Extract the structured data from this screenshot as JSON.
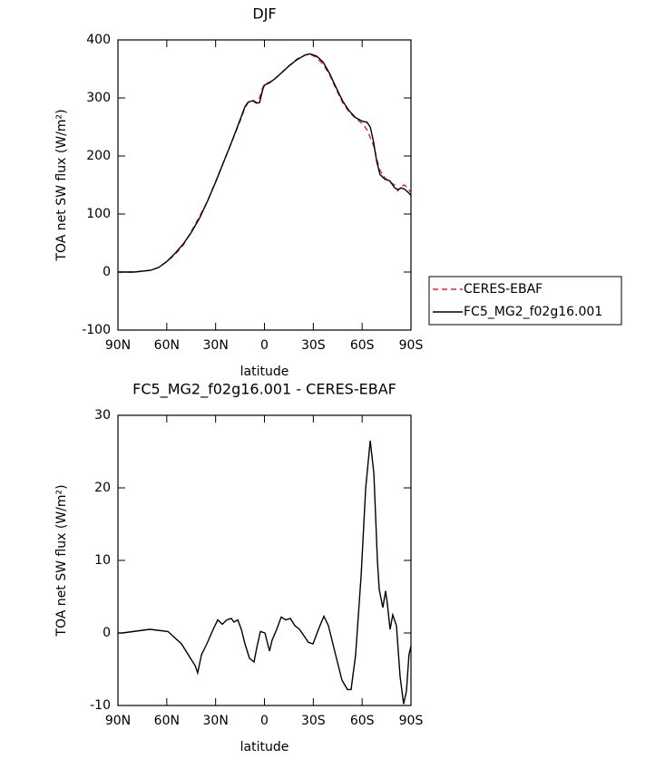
{
  "chart_data": [
    {
      "type": "line",
      "title": "DJF",
      "xlabel": "latitude",
      "ylabel": "TOA net SW flux (W/m²)",
      "x": [
        90,
        80,
        70,
        65,
        60,
        55,
        50,
        45,
        40,
        35,
        30,
        25,
        20,
        15,
        12,
        10,
        7,
        5,
        3,
        1,
        0,
        -3,
        -6,
        -10,
        -15,
        -20,
        -25,
        -28,
        -32,
        -36,
        -40,
        -44,
        -48,
        -52,
        -56,
        -60,
        -63,
        -65,
        -67,
        -69,
        -71,
        -74,
        -77,
        -80,
        -82,
        -84,
        -86,
        -88,
        -90
      ],
      "series": [
        {
          "name": "CERES-EBAF",
          "color": "#e8202a",
          "dashed": true,
          "values": [
            0,
            0,
            3,
            8,
            18,
            30,
            46,
            70,
            95,
            122,
            156,
            190,
            225,
            260,
            283,
            292,
            296,
            293,
            300,
            318,
            324,
            327,
            332,
            342,
            355,
            367,
            374,
            375,
            370,
            358,
            340,
            315,
            292,
            276,
            265,
            256,
            245,
            232,
            218,
            195,
            175,
            162,
            155,
            150,
            140,
            148,
            150,
            145,
            136
          ]
        },
        {
          "name": "FC5_MG2_f02g16.001",
          "color": "#000000",
          "dashed": false,
          "values": [
            0,
            0,
            3,
            8,
            18,
            32,
            48,
            68,
            92,
            122,
            155,
            190,
            225,
            262,
            285,
            293,
            295,
            291,
            292,
            315,
            322,
            326,
            332,
            342,
            355,
            366,
            374,
            376,
            372,
            362,
            342,
            318,
            295,
            278,
            266,
            260,
            258,
            250,
            225,
            190,
            168,
            160,
            157,
            145,
            142,
            145,
            143,
            138,
            132
          ]
        }
      ],
      "xlim": [
        90,
        -90
      ],
      "xticks": [
        {
          "value": 90,
          "label": "90N"
        },
        {
          "value": 60,
          "label": "60N"
        },
        {
          "value": 30,
          "label": "30N"
        },
        0,
        {
          "value": -30,
          "label": "30S"
        },
        {
          "value": -60,
          "label": "60S"
        },
        {
          "value": -90,
          "label": "90S"
        }
      ],
      "ylim": [
        -100,
        400
      ],
      "yticks": [
        -100,
        0,
        100,
        200,
        300,
        400
      ],
      "legend": "right"
    },
    {
      "type": "line",
      "title": "FC5_MG2_f02g16.001 - CERES-EBAF",
      "xlabel": "latitude",
      "ylabel": "TOA net SW flux (W/m²)",
      "x": [
        90,
        87.2,
        70.5,
        59.3,
        51,
        45.4,
        42.6,
        41,
        38.7,
        35.4,
        31.5,
        28.7,
        25.9,
        23.1,
        20.4,
        18.7,
        16.4,
        14.2,
        12,
        9.2,
        6.4,
        4.7,
        2.5,
        -0.3,
        -3.1,
        -4.7,
        -7.5,
        -10.3,
        -13.1,
        -15.9,
        -18.7,
        -21.5,
        -27,
        -29.8,
        -33.7,
        -36.5,
        -39.3,
        -43.7,
        -47.6,
        -51,
        -53.2,
        -56,
        -59.4,
        -62.2,
        -65,
        -67.2,
        -69.4,
        -70.5,
        -72.7,
        -74.4,
        -75.5,
        -77.2,
        -78.8,
        -81.1,
        -83.3,
        -85.5,
        -87.2,
        -88.8,
        -90
      ],
      "series": [
        {
          "color": "#000000",
          "dashed": false,
          "values": [
            0,
            0,
            0.5,
            0.2,
            -1.5,
            -3.5,
            -4.5,
            -5.5,
            -3,
            -1.5,
            0.5,
            1.8,
            1.2,
            1.8,
            2,
            1.5,
            1.8,
            0.5,
            -1.5,
            -3.5,
            -4,
            -2,
            0.2,
            0,
            -2.5,
            -1,
            0.5,
            2.2,
            1.8,
            2,
            1,
            0.5,
            -1.3,
            -1.5,
            0.8,
            2.3,
            1,
            -3,
            -6.5,
            -7.8,
            -7.8,
            -3,
            8,
            20,
            26.5,
            22,
            10,
            6,
            3.5,
            5.8,
            4,
            0.5,
            2.5,
            1,
            -6,
            -9.8,
            -8,
            -3,
            -1.8
          ]
        }
      ],
      "xlim": [
        90,
        -90
      ],
      "xticks": [
        {
          "value": 90,
          "label": "90N"
        },
        {
          "value": 60,
          "label": "60N"
        },
        {
          "value": 30,
          "label": "30N"
        },
        0,
        {
          "value": -30,
          "label": "30S"
        },
        {
          "value": -60,
          "label": "60S"
        },
        {
          "value": -90,
          "label": "90S"
        }
      ],
      "ylim": [
        -10,
        30
      ],
      "yticks": [
        -10,
        0,
        10,
        20,
        30
      ]
    }
  ]
}
